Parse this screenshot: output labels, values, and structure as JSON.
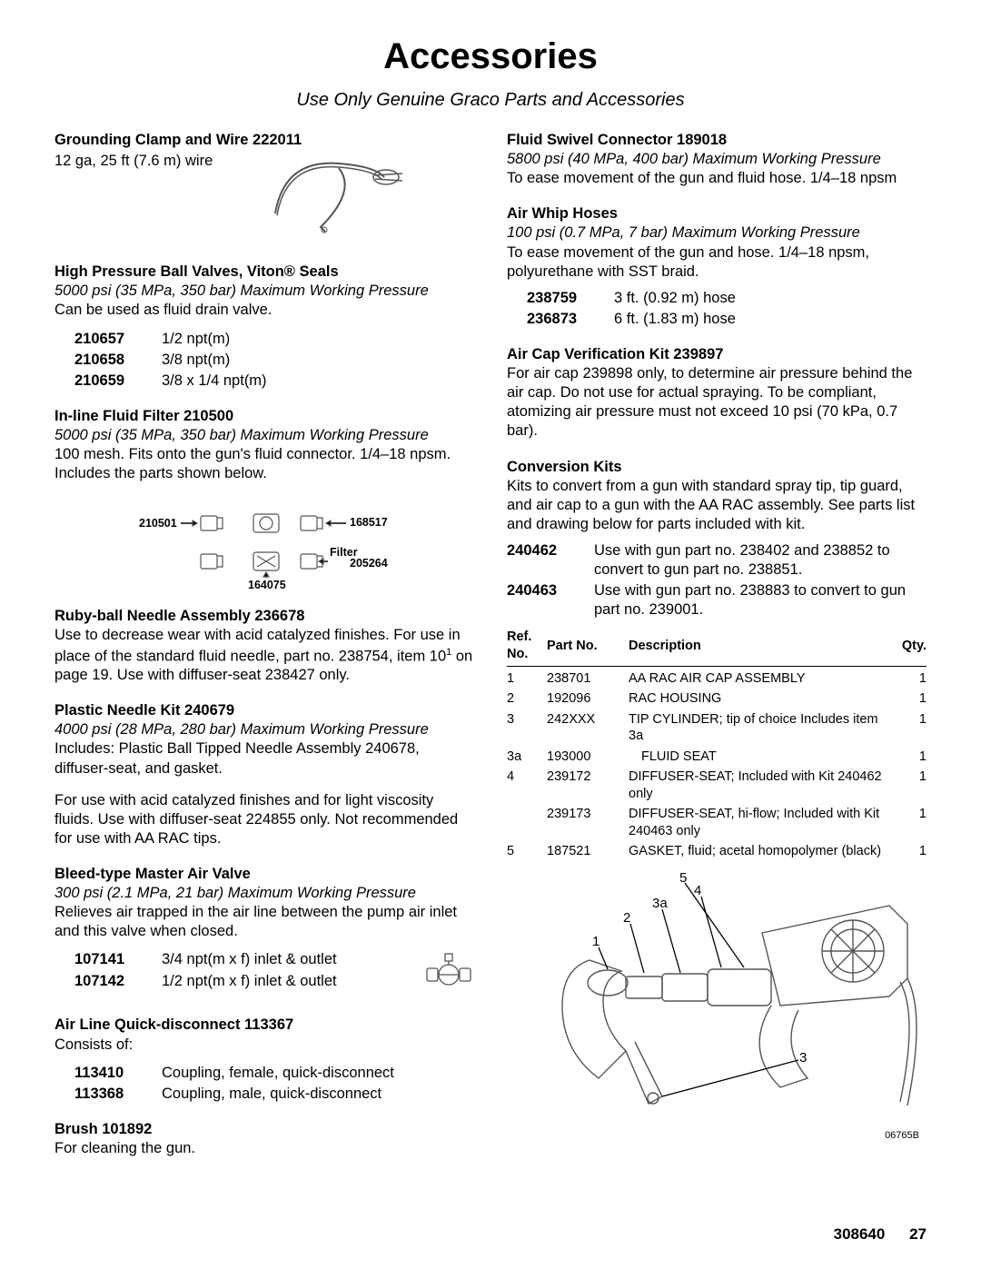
{
  "title": "Accessories",
  "subtitle": "Use Only Genuine Graco Parts and Accessories",
  "left": {
    "grounding": {
      "heading": "Grounding Clamp and Wire 222011",
      "text": "12 ga, 25 ft (7.6 m) wire"
    },
    "ballvalves": {
      "heading": "High Pressure Ball Valves, Viton® Seals",
      "pressure": "5000 psi (35 MPa, 350 bar) Maximum Working Pressure",
      "text": "Can be used as fluid drain valve.",
      "parts": [
        {
          "pn": "210657",
          "pd": "1/2 npt(m)"
        },
        {
          "pn": "210658",
          "pd": "3/8 npt(m)"
        },
        {
          "pn": "210659",
          "pd": "3/8 x 1/4 npt(m)"
        }
      ]
    },
    "filter": {
      "heading": "In-line Fluid Filter 210500",
      "pressure": "5000 psi (35 MPa, 350 bar) Maximum Working Pressure",
      "text": "100 mesh. Fits onto the gun's fluid connector. 1/4–18 npsm. Includes the parts shown below.",
      "labels": {
        "a": "210501",
        "b": "168517",
        "c": "Filter",
        "d": "164075",
        "e": "205264"
      }
    },
    "ruby": {
      "heading": "Ruby-ball Needle Assembly 236678",
      "text1": "Use to decrease wear with acid catalyzed finishes. For use in place of the standard fluid needle, part no. 238754, item 10",
      "text2": " on page 19. Use with diffuser-seat 238427 only."
    },
    "plastic": {
      "heading": "Plastic Needle Kit 240679",
      "pressure": "4000 psi (28 MPa, 280 bar) Maximum Working Pressure",
      "text1": "Includes: Plastic Ball Tipped Needle Assembly 240678, diffuser-seat, and gasket.",
      "text2": "For use with acid catalyzed finishes and for light viscosity fluids. Use with diffuser-seat 224855 only. Not recommended for use with AA RAC tips."
    },
    "bleed": {
      "heading": "Bleed-type Master Air Valve",
      "pressure": "300 psi (2.1 MPa, 21 bar) Maximum Working Pressure",
      "text": "Relieves air trapped in the air line between the pump air inlet and this valve when closed.",
      "parts": [
        {
          "pn": "107141",
          "pd": "3/4 npt(m x f) inlet & outlet"
        },
        {
          "pn": "107142",
          "pd": "1/2 npt(m x f) inlet & outlet"
        }
      ]
    },
    "quick": {
      "heading": "Air Line Quick-disconnect 113367",
      "text": "Consists of:",
      "parts": [
        {
          "pn": "113410",
          "pd": "Coupling, female, quick-disconnect"
        },
        {
          "pn": "113368",
          "pd": "Coupling, male, quick-disconnect"
        }
      ]
    },
    "brush": {
      "heading": "Brush 101892",
      "text": "For cleaning the gun."
    }
  },
  "right": {
    "swivel": {
      "heading": "Fluid Swivel Connector 189018",
      "pressure": "5800 psi (40 MPa, 400 bar) Maximum Working Pressure",
      "text": "To ease movement of the gun and fluid hose. 1/4–18 npsm"
    },
    "whip": {
      "heading": "Air Whip Hoses",
      "pressure": "100 psi (0.7 MPa, 7 bar) Maximum Working Pressure",
      "text": "To ease movement of the gun and hose. 1/4–18 npsm, polyurethane with SST braid.",
      "parts": [
        {
          "pn": "238759",
          "pd": "3 ft. (0.92 m) hose"
        },
        {
          "pn": "236873",
          "pd": "6 ft. (1.83 m) hose"
        }
      ]
    },
    "aircap": {
      "heading": "Air Cap Verification Kit 239897",
      "text": "For air cap 239898 only, to determine air pressure behind the air cap. Do not use for actual spraying. To be compliant, atomizing air pressure must not exceed 10 psi (70 kPa, 0.7 bar)."
    },
    "kits": {
      "heading": "Conversion Kits",
      "text": "Kits to convert from a gun with standard spray tip, tip guard, and air cap to a gun with the AA RAC assembly. See parts list and drawing below for parts included with kit.",
      "parts": [
        {
          "pn": "240462",
          "pd": "Use with gun part no. 238402 and 238852 to convert to gun part no. 238851."
        },
        {
          "pn": "240463",
          "pd": "Use with gun part no. 238883 to convert to gun part no. 239001."
        }
      ]
    },
    "table": {
      "headers": {
        "ref": "Ref.\nNo.",
        "part": "Part No.",
        "desc": "Description",
        "qty": "Qty."
      },
      "rows": [
        {
          "ref": "1",
          "pn": "238701",
          "desc": "AA RAC AIR CAP ASSEMBLY",
          "qty": "1"
        },
        {
          "ref": "2",
          "pn": "192096",
          "desc": "RAC HOUSING",
          "qty": "1"
        },
        {
          "ref": "3",
          "pn": "242XXX",
          "desc": "TIP CYLINDER; tip of choice Includes item 3a",
          "qty": "1"
        },
        {
          "ref": "3a",
          "pn": "193000",
          "desc": "FLUID SEAT",
          "sub": true,
          "qty": "1"
        },
        {
          "ref": "4",
          "pn": "239172",
          "desc": "DIFFUSER-SEAT; Included with Kit 240462 only",
          "qty": "1"
        },
        {
          "ref": "",
          "pn": "239173",
          "desc": "DIFFUSER-SEAT, hi-flow; Included with Kit 240463 only",
          "qty": "1"
        },
        {
          "ref": "5",
          "pn": "187521",
          "desc": "GASKET, fluid; acetal homopolymer (black)",
          "qty": "1"
        }
      ]
    },
    "diagram_img_no": "06765B"
  },
  "footer": {
    "docno": "308640",
    "pageno": "27"
  }
}
